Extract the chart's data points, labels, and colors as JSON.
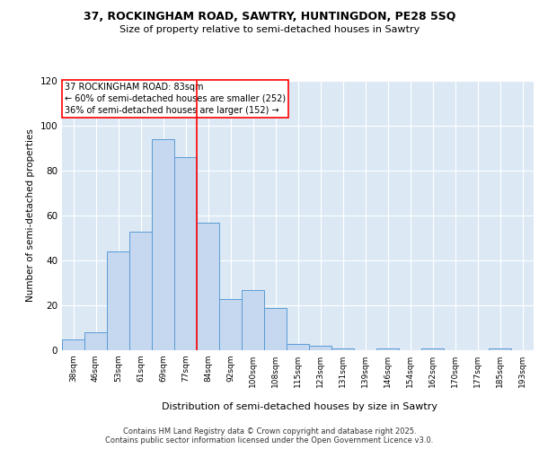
{
  "title1": "37, ROCKINGHAM ROAD, SAWTRY, HUNTINGDON, PE28 5SQ",
  "title2": "Size of property relative to semi-detached houses in Sawtry",
  "xlabel": "Distribution of semi-detached houses by size in Sawtry",
  "ylabel": "Number of semi-detached properties",
  "categories": [
    "38sqm",
    "46sqm",
    "53sqm",
    "61sqm",
    "69sqm",
    "77sqm",
    "84sqm",
    "92sqm",
    "100sqm",
    "108sqm",
    "115sqm",
    "123sqm",
    "131sqm",
    "139sqm",
    "146sqm",
    "154sqm",
    "162sqm",
    "170sqm",
    "177sqm",
    "185sqm",
    "193sqm"
  ],
  "values": [
    5,
    8,
    44,
    53,
    94,
    86,
    57,
    23,
    27,
    19,
    3,
    2,
    1,
    0,
    1,
    0,
    1,
    0,
    0,
    1,
    0
  ],
  "bar_color": "#c5d8f0",
  "bar_edge_color": "#5b9bd5",
  "vline_color": "red",
  "vline_pos": 5.5,
  "annotation_title": "37 ROCKINGHAM ROAD: 83sqm",
  "annotation_line1": "← 60% of semi-detached houses are smaller (252)",
  "annotation_line2": "36% of semi-detached houses are larger (152) →",
  "annotation_box_color": "white",
  "annotation_box_edge": "red",
  "ylim": [
    0,
    120
  ],
  "yticks": [
    0,
    20,
    40,
    60,
    80,
    100,
    120
  ],
  "background_color": "#dce9f5",
  "footer1": "Contains HM Land Registry data © Crown copyright and database right 2025.",
  "footer2": "Contains public sector information licensed under the Open Government Licence v3.0."
}
